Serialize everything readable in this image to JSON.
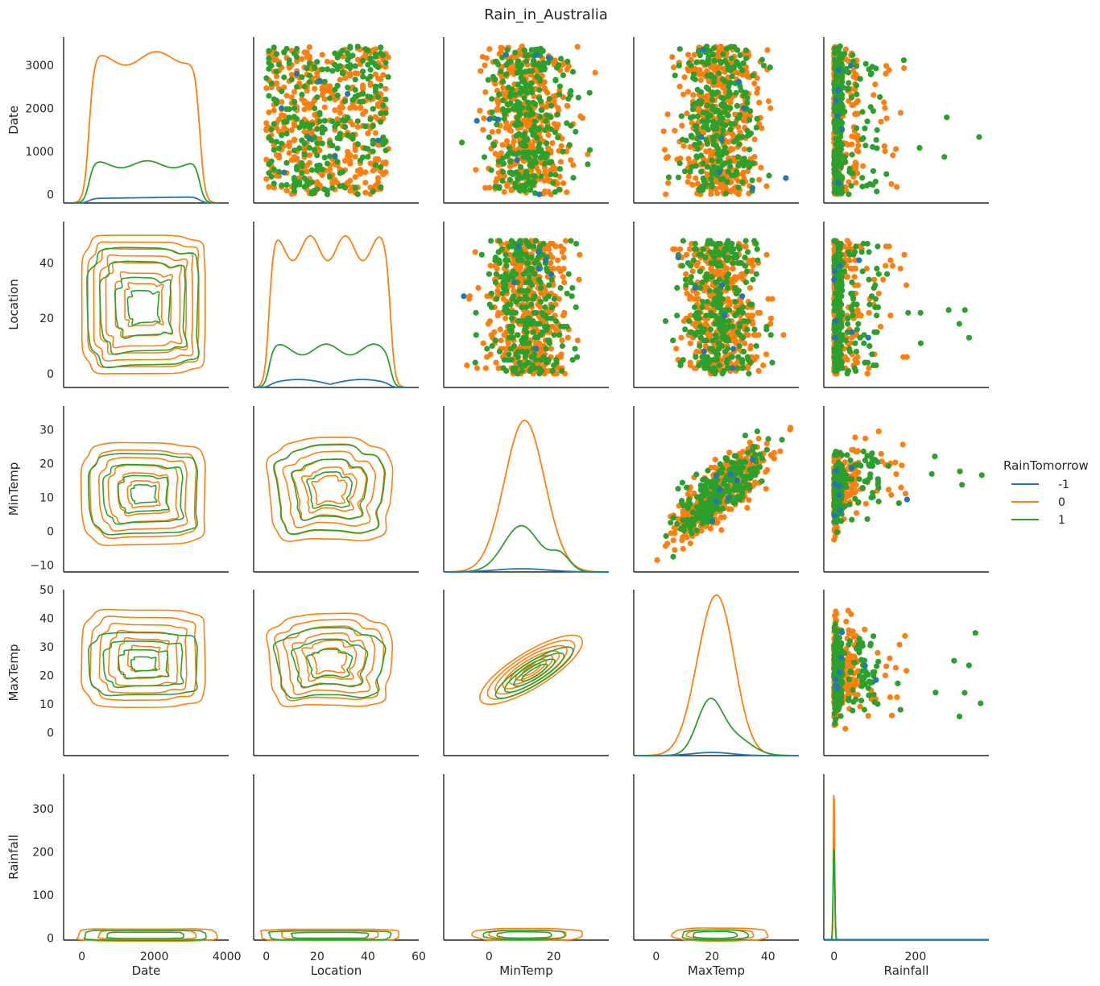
{
  "title": "Rain_in_Australia",
  "legend": {
    "title": "RainTomorrow",
    "position": "right",
    "entries": [
      {
        "label": "-1",
        "color": "#1f77b4"
      },
      {
        "label": "0",
        "color": "#ff7f0e"
      },
      {
        "label": "1",
        "color": "#2ca02c"
      }
    ]
  },
  "chart_data": {
    "type": "scatter",
    "layout": "pairplot",
    "upper": "scatter",
    "diagonal": "kde",
    "lower": "kde-contour",
    "grid": false,
    "hue": "RainTomorrow",
    "variables": [
      {
        "name": "Date",
        "range": [
          -200,
          3650
        ],
        "ticks_y": [
          0,
          1000,
          2000,
          3000
        ],
        "ticks_x": [
          0,
          2000,
          4000
        ],
        "xlim": [
          -500,
          4050
        ]
      },
      {
        "name": "Location",
        "range": [
          -5,
          55
        ],
        "ticks_y": [
          0,
          20,
          40
        ],
        "ticks_x": [
          0,
          20,
          40,
          60
        ],
        "xlim": [
          -5,
          60
        ]
      },
      {
        "name": "MinTemp",
        "range": [
          -12,
          37
        ],
        "ticks_y": [
          -10,
          0,
          10,
          20,
          30
        ],
        "ticks_x": [
          0,
          20
        ],
        "xlim": [
          -14,
          37
        ]
      },
      {
        "name": "MaxTemp",
        "range": [
          -8,
          50
        ],
        "ticks_y": [
          0,
          10,
          20,
          30,
          40,
          50
        ],
        "ticks_x": [
          0,
          20,
          40
        ],
        "xlim": [
          -8,
          51
        ]
      },
      {
        "name": "Rainfall",
        "range": [
          -5,
          380
        ],
        "ticks_y": [
          0,
          100,
          200,
          300
        ],
        "ticks_x": [
          0,
          200
        ],
        "xlim": [
          -25,
          380
        ]
      }
    ],
    "diagonal_kde": {
      "Date": {
        "-1": 0.01,
        "0": 0.52,
        "1": 0.14
      },
      "Location": {
        "-1": 0.02,
        "0": 0.53,
        "1": 0.11
      },
      "MinTemp": {
        "mode_-1": 10,
        "mode_0": 11,
        "mode_1": 10
      },
      "MaxTemp": {
        "mode_-1": 20,
        "mode_0": 21,
        "mode_1": 19
      },
      "Rainfall": {
        "mode": 0
      }
    },
    "scatter_extents": {
      "Date_vs_Location": {
        "x": [
          0,
          49
        ],
        "y": [
          0,
          3436
        ]
      },
      "Date_vs_MinTemp": {
        "x": [
          -8.5,
          34
        ],
        "y": [
          0,
          3436
        ]
      },
      "Date_vs_MaxTemp": {
        "x": [
          -5,
          48
        ],
        "y": [
          0,
          3436
        ]
      },
      "Date_vs_Rainfall": {
        "x": [
          0,
          371
        ],
        "y": [
          0,
          3436
        ]
      },
      "Location_vs_MinTemp": {
        "x": [
          -8.5,
          34
        ],
        "y": [
          0,
          49
        ]
      },
      "Location_vs_MaxTemp": {
        "x": [
          -5,
          48
        ],
        "y": [
          0,
          49
        ]
      },
      "Location_vs_Rainfall": {
        "x": [
          0,
          371
        ],
        "y": [
          0,
          49
        ]
      },
      "MinTemp_vs_MaxTemp": {
        "x": [
          -5,
          48
        ],
        "y": [
          -8.5,
          34
        ],
        "correlation": "strong positive"
      },
      "MinTemp_vs_Rainfall": {
        "x": [
          0,
          371
        ],
        "y": [
          -8.5,
          34
        ]
      },
      "MaxTemp_vs_Rainfall": {
        "x": [
          0,
          371
        ],
        "y": [
          -5,
          48
        ]
      }
    }
  }
}
